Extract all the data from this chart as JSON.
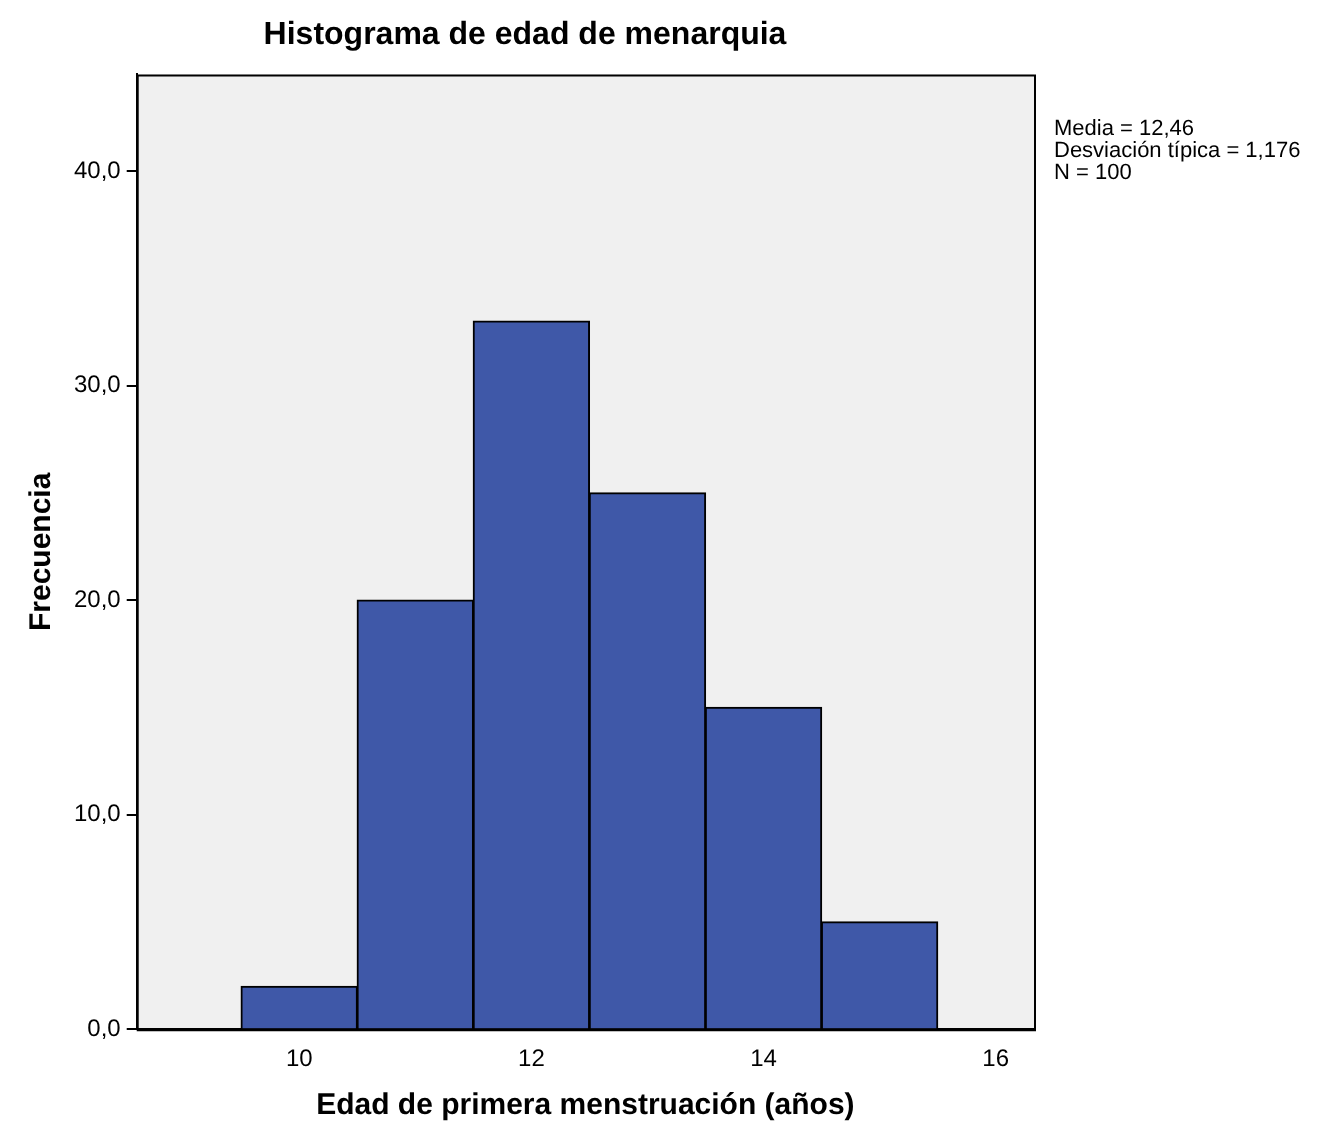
{
  "chart_data": {
    "type": "histogram",
    "title": "Histograma de edad de menarquia",
    "xlabel": "Edad de primera menstruación (años)",
    "ylabel": "Frecuencia",
    "bins": [
      9.5,
      10.5,
      11.5,
      12.5,
      13.5,
      14.5,
      15.5
    ],
    "values": [
      2,
      20,
      33,
      25,
      15,
      5
    ],
    "color": "#3f58a8",
    "xlim": [
      8.6,
      16.33
    ],
    "xticks": [
      10,
      12,
      14,
      16
    ],
    "ylim": [
      0,
      44.5
    ],
    "yticks": [
      {
        "value": 0,
        "label": "0,0"
      },
      {
        "value": 10,
        "label": "10,0"
      },
      {
        "value": 20,
        "label": "20,0"
      },
      {
        "value": 30,
        "label": "30,0"
      },
      {
        "value": 40,
        "label": "40,0"
      }
    ],
    "grid": false,
    "legend": false,
    "annotations": [
      "Media = 12,46",
      "Desviación típica = 1,176",
      "N = 100"
    ]
  }
}
